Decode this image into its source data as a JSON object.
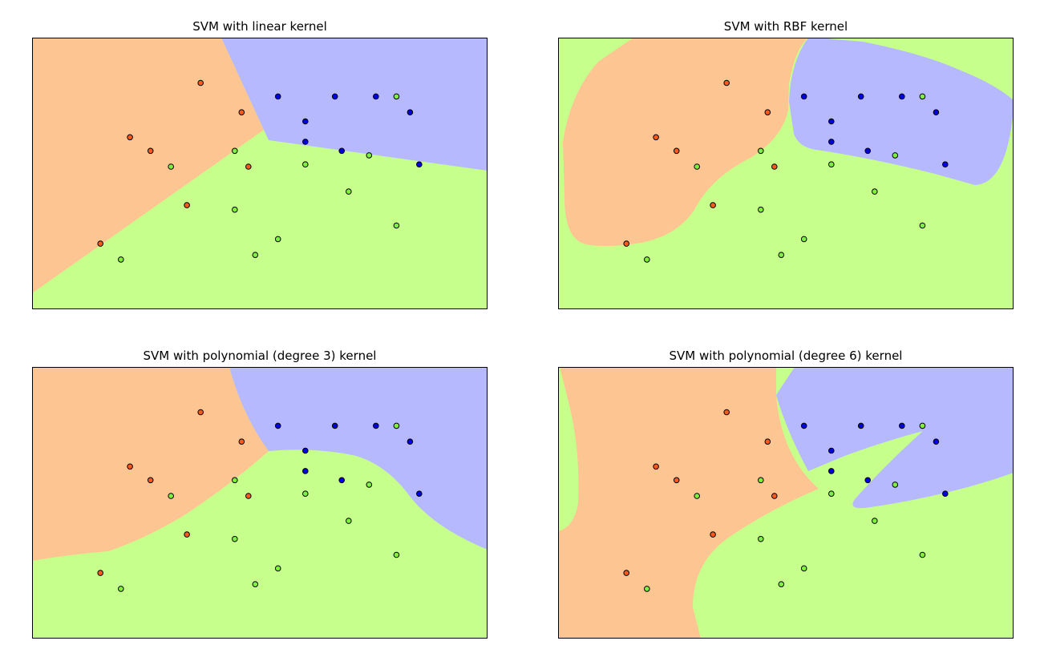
{
  "colors": {
    "region_orange": "#fdc591",
    "region_blue": "#b7b9fe",
    "region_green": "#c7ff8d",
    "point_orange": "#fa5a1e",
    "point_blue": "#0000e6",
    "point_green": "#80f040",
    "axes_frame": "#000000"
  },
  "chart_data": [
    {
      "type": "scatter",
      "title": "SVM with linear kernel",
      "xlim": [
        0,
        10
      ],
      "ylim": [
        0,
        6
      ],
      "grid": false,
      "ticks": false,
      "background": "decision regions by class",
      "points": [
        {
          "x": 3.7,
          "y": 5.0,
          "class": "orange"
        },
        {
          "x": 2.15,
          "y": 3.8,
          "class": "orange"
        },
        {
          "x": 4.6,
          "y": 4.35,
          "class": "orange"
        },
        {
          "x": 2.6,
          "y": 3.5,
          "class": "orange"
        },
        {
          "x": 4.75,
          "y": 3.15,
          "class": "orange"
        },
        {
          "x": 3.4,
          "y": 2.3,
          "class": "orange"
        },
        {
          "x": 1.5,
          "y": 1.45,
          "class": "orange"
        },
        {
          "x": 5.4,
          "y": 4.7,
          "class": "blue"
        },
        {
          "x": 6.65,
          "y": 4.7,
          "class": "blue"
        },
        {
          "x": 7.55,
          "y": 4.7,
          "class": "blue"
        },
        {
          "x": 6.0,
          "y": 4.15,
          "class": "blue"
        },
        {
          "x": 8.3,
          "y": 4.35,
          "class": "blue"
        },
        {
          "x": 6.0,
          "y": 3.7,
          "class": "blue"
        },
        {
          "x": 6.8,
          "y": 3.5,
          "class": "blue"
        },
        {
          "x": 8.5,
          "y": 3.2,
          "class": "blue"
        },
        {
          "x": 8.0,
          "y": 4.7,
          "class": "green"
        },
        {
          "x": 4.45,
          "y": 3.5,
          "class": "green"
        },
        {
          "x": 3.05,
          "y": 3.15,
          "class": "green"
        },
        {
          "x": 6.0,
          "y": 3.2,
          "class": "green"
        },
        {
          "x": 7.4,
          "y": 3.4,
          "class": "green"
        },
        {
          "x": 6.95,
          "y": 2.6,
          "class": "green"
        },
        {
          "x": 4.45,
          "y": 2.2,
          "class": "green"
        },
        {
          "x": 8.0,
          "y": 1.85,
          "class": "green"
        },
        {
          "x": 5.4,
          "y": 1.55,
          "class": "green"
        },
        {
          "x": 4.9,
          "y": 1.2,
          "class": "green"
        },
        {
          "x": 1.95,
          "y": 1.1,
          "class": "green"
        }
      ]
    },
    {
      "type": "scatter",
      "title": "SVM with RBF kernel",
      "xlim": [
        0,
        10
      ],
      "ylim": [
        0,
        6
      ],
      "grid": false,
      "ticks": false,
      "background": "decision regions by class",
      "points": "same as first subplot"
    },
    {
      "type": "scatter",
      "title": "SVM with polynomial (degree 3) kernel",
      "xlim": [
        0,
        10
      ],
      "ylim": [
        0,
        6
      ],
      "grid": false,
      "ticks": false,
      "background": "decision regions by class",
      "points": "same as first subplot"
    },
    {
      "type": "scatter",
      "title": "SVM with polynomial (degree 6) kernel",
      "xlim": [
        0,
        10
      ],
      "ylim": [
        0,
        6
      ],
      "grid": false,
      "ticks": false,
      "background": "decision regions by class",
      "points": "same as first subplot"
    }
  ]
}
